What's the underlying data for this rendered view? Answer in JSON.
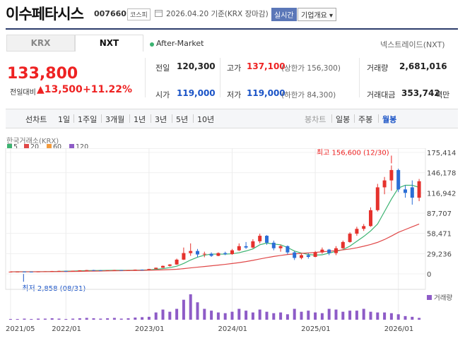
{
  "header": {
    "title": "이수페타시스",
    "code": "007660",
    "market_badge": "코스피",
    "date_text": "2026.04.20  기준(KRX 장마감)",
    "live_badge": "실시간",
    "company_overview": "기업개요 ▾"
  },
  "tabs": {
    "krx": "KRX",
    "nxt": "NXT"
  },
  "after_market": "After-Market",
  "nxt_link": "넥스트레이드(NXT)",
  "quote": {
    "price": "133,800",
    "change_label": "전일대비",
    "change_value": "▲13,500",
    "change_pct": "+11.22%",
    "prev_label": "전일",
    "prev_value": "120,300",
    "high_label": "고가",
    "high_value": "137,100",
    "upper_limit": "(상한가 156,300)",
    "volume_label": "거래량",
    "volume_value": "2,681,016",
    "open_label": "시가",
    "open_value": "119,000",
    "low_label": "저가",
    "low_value": "119,000",
    "lower_limit": "(하한가 84,300)",
    "amount_label": "거래대금",
    "amount_value": "353,742",
    "amount_unit": "백만"
  },
  "period_tabs": [
    "선차트",
    "1일",
    "1주일",
    "3개월",
    "1년",
    "3년",
    "5년",
    "10년"
  ],
  "candle_label": "봉차트",
  "candle_tabs": [
    "일봉",
    "주봉",
    "월봉"
  ],
  "candle_selected": "월봉",
  "chart_data": {
    "type": "candlestick",
    "source_label": "한국거래소(KRX)",
    "ma_legend": [
      {
        "name": "5",
        "color": "#3cb371"
      },
      {
        "name": "20",
        "color": "#e04848"
      },
      {
        "name": "60",
        "color": "#f39a3b"
      },
      {
        "name": "120",
        "color": "#8e5cc7"
      }
    ],
    "y_ticks": [
      "175,414",
      "146,178",
      "116,942",
      "87,707",
      "58,471",
      "29,236",
      "0"
    ],
    "ylim": [
      0,
      175414
    ],
    "x_ticks": [
      "2021/05",
      "2022/01",
      "2023/01",
      "2024/01",
      "2025/01",
      "2026/01"
    ],
    "high_annotation": "최고 156,600 (12/30)",
    "low_annotation": "최저 2,858 (08/31)",
    "volume_label": "거래량",
    "ohlc": [
      {
        "x": "2021-05",
        "o": 3000,
        "h": 3300,
        "l": 2900,
        "c": 3100
      },
      {
        "x": "2021-06",
        "o": 3100,
        "h": 3400,
        "l": 3000,
        "c": 3200
      },
      {
        "x": "2021-07",
        "o": 3200,
        "h": 3500,
        "l": 3000,
        "c": 3100
      },
      {
        "x": "2021-08",
        "o": 3100,
        "h": 3200,
        "l": 2858,
        "c": 3000
      },
      {
        "x": "2021-09",
        "o": 3000,
        "h": 3600,
        "l": 2950,
        "c": 3400
      },
      {
        "x": "2021-10",
        "o": 3400,
        "h": 3800,
        "l": 3300,
        "c": 3600
      },
      {
        "x": "2021-11",
        "o": 3600,
        "h": 4200,
        "l": 3500,
        "c": 4000
      },
      {
        "x": "2021-12",
        "o": 4000,
        "h": 4400,
        "l": 3800,
        "c": 4200
      },
      {
        "x": "2022-01",
        "o": 4200,
        "h": 4500,
        "l": 3900,
        "c": 4100
      },
      {
        "x": "2022-02",
        "o": 4100,
        "h": 4600,
        "l": 4000,
        "c": 4500
      },
      {
        "x": "2022-03",
        "o": 4500,
        "h": 5200,
        "l": 4400,
        "c": 5000
      },
      {
        "x": "2022-04",
        "o": 5000,
        "h": 5600,
        "l": 4800,
        "c": 5400
      },
      {
        "x": "2022-05",
        "o": 5400,
        "h": 5800,
        "l": 5000,
        "c": 5200
      },
      {
        "x": "2022-06",
        "o": 5200,
        "h": 5400,
        "l": 4500,
        "c": 4700
      },
      {
        "x": "2022-07",
        "o": 4700,
        "h": 5300,
        "l": 4600,
        "c": 5100
      },
      {
        "x": "2022-08",
        "o": 5100,
        "h": 5700,
        "l": 5000,
        "c": 5500
      },
      {
        "x": "2022-09",
        "o": 5500,
        "h": 5600,
        "l": 4600,
        "c": 4800
      },
      {
        "x": "2022-10",
        "o": 4800,
        "h": 5500,
        "l": 4700,
        "c": 5300
      },
      {
        "x": "2022-11",
        "o": 5300,
        "h": 6200,
        "l": 5200,
        "c": 6000
      },
      {
        "x": "2022-12",
        "o": 6000,
        "h": 6300,
        "l": 5600,
        "c": 5800
      },
      {
        "x": "2023-01",
        "o": 5800,
        "h": 7200,
        "l": 5700,
        "c": 7000
      },
      {
        "x": "2023-02",
        "o": 7000,
        "h": 9000,
        "l": 6900,
        "c": 8800
      },
      {
        "x": "2023-03",
        "o": 8800,
        "h": 12000,
        "l": 8500,
        "c": 11500
      },
      {
        "x": "2023-04",
        "o": 11500,
        "h": 14000,
        "l": 10500,
        "c": 13500
      },
      {
        "x": "2023-05",
        "o": 13500,
        "h": 22000,
        "l": 13000,
        "c": 20500
      },
      {
        "x": "2023-06",
        "o": 20500,
        "h": 38000,
        "l": 20000,
        "c": 30000
      },
      {
        "x": "2023-07",
        "o": 30000,
        "h": 44000,
        "l": 26000,
        "c": 33000
      },
      {
        "x": "2023-08",
        "o": 33000,
        "h": 36000,
        "l": 24000,
        "c": 28000
      },
      {
        "x": "2023-09",
        "o": 28000,
        "h": 32000,
        "l": 24000,
        "c": 29000
      },
      {
        "x": "2023-10",
        "o": 29000,
        "h": 31000,
        "l": 24500,
        "c": 26000
      },
      {
        "x": "2023-11",
        "o": 26000,
        "h": 31000,
        "l": 25500,
        "c": 30000
      },
      {
        "x": "2023-12",
        "o": 30000,
        "h": 32000,
        "l": 27000,
        "c": 28500
      },
      {
        "x": "2024-01",
        "o": 28500,
        "h": 36000,
        "l": 27500,
        "c": 34000
      },
      {
        "x": "2024-02",
        "o": 34000,
        "h": 44000,
        "l": 33000,
        "c": 40000
      },
      {
        "x": "2024-03",
        "o": 40000,
        "h": 46000,
        "l": 36000,
        "c": 38000
      },
      {
        "x": "2024-04",
        "o": 38000,
        "h": 50000,
        "l": 37000,
        "c": 47000
      },
      {
        "x": "2024-05",
        "o": 47000,
        "h": 58000,
        "l": 44000,
        "c": 55000
      },
      {
        "x": "2024-06",
        "o": 55000,
        "h": 56000,
        "l": 42000,
        "c": 45000
      },
      {
        "x": "2024-07",
        "o": 45000,
        "h": 48000,
        "l": 34000,
        "c": 37000
      },
      {
        "x": "2024-08",
        "o": 37000,
        "h": 42000,
        "l": 32000,
        "c": 40000
      },
      {
        "x": "2024-09",
        "o": 40000,
        "h": 41000,
        "l": 28000,
        "c": 31000
      },
      {
        "x": "2024-10",
        "o": 31000,
        "h": 33000,
        "l": 20000,
        "c": 23000
      },
      {
        "x": "2024-11",
        "o": 23000,
        "h": 29000,
        "l": 21000,
        "c": 27000
      },
      {
        "x": "2024-12",
        "o": 27000,
        "h": 30000,
        "l": 22000,
        "c": 24500
      },
      {
        "x": "2025-01",
        "o": 24500,
        "h": 33000,
        "l": 24000,
        "c": 31000
      },
      {
        "x": "2025-02",
        "o": 31000,
        "h": 38000,
        "l": 29000,
        "c": 35000
      },
      {
        "x": "2025-03",
        "o": 35000,
        "h": 36000,
        "l": 27000,
        "c": 30000
      },
      {
        "x": "2025-04",
        "o": 30000,
        "h": 40000,
        "l": 27000,
        "c": 37000
      },
      {
        "x": "2025-05",
        "o": 37000,
        "h": 48000,
        "l": 36000,
        "c": 46000
      },
      {
        "x": "2025-06",
        "o": 46000,
        "h": 60000,
        "l": 45000,
        "c": 58000
      },
      {
        "x": "2025-07",
        "o": 58000,
        "h": 68000,
        "l": 55000,
        "c": 65000
      },
      {
        "x": "2025-08",
        "o": 65000,
        "h": 72000,
        "l": 62000,
        "c": 69000
      },
      {
        "x": "2025-09",
        "o": 69000,
        "h": 96000,
        "l": 68000,
        "c": 92000
      },
      {
        "x": "2025-10",
        "o": 92000,
        "h": 130000,
        "l": 90000,
        "c": 125000
      },
      {
        "x": "2025-11",
        "o": 125000,
        "h": 140000,
        "l": 115000,
        "c": 135000
      },
      {
        "x": "2025-12",
        "o": 135000,
        "h": 156600,
        "l": 120000,
        "c": 150000
      },
      {
        "x": "2026-01",
        "o": 150000,
        "h": 152000,
        "l": 118000,
        "c": 122000
      },
      {
        "x": "2026-02",
        "o": 122000,
        "h": 128000,
        "l": 110000,
        "c": 117000
      },
      {
        "x": "2026-03",
        "o": 125000,
        "h": 135000,
        "l": 100000,
        "c": 110000
      },
      {
        "x": "2026-04",
        "o": 110000,
        "h": 137100,
        "l": 105000,
        "c": 133800
      }
    ],
    "volume": [
      2,
      2,
      3,
      2,
      3,
      3,
      4,
      3,
      2,
      3,
      4,
      5,
      4,
      3,
      4,
      5,
      3,
      4,
      6,
      7,
      8,
      20,
      28,
      22,
      30,
      55,
      70,
      48,
      30,
      25,
      20,
      18,
      22,
      30,
      25,
      20,
      28,
      22,
      18,
      20,
      15,
      30,
      22,
      25,
      20,
      18,
      30,
      28,
      22,
      25,
      25,
      30,
      22,
      20,
      20,
      18,
      15,
      10,
      8,
      5
    ],
    "ma": {
      "5": [
        3000,
        3050,
        3080,
        3100,
        3120,
        3200,
        3400,
        3600,
        3800,
        4000,
        4300,
        4600,
        4800,
        4900,
        5000,
        5100,
        5100,
        5100,
        5200,
        5400,
        5800,
        6500,
        7600,
        9000,
        11000,
        15000,
        20000,
        24000,
        27000,
        28500,
        28500,
        28500,
        29000,
        30500,
        33000,
        36000,
        42000,
        44500,
        43000,
        42000,
        38000,
        33000,
        30000,
        28000,
        27000,
        27500,
        30000,
        32500,
        35000,
        40000,
        47000,
        54000,
        62000,
        72000,
        90000,
        108000,
        124000,
        128000,
        128000,
        125000
      ],
      "20": [
        3000,
        3000,
        3000,
        3000,
        3050,
        3100,
        3150,
        3250,
        3350,
        3450,
        3600,
        3800,
        3950,
        4100,
        4250,
        4400,
        4550,
        4700,
        4850,
        5000,
        5200,
        5400,
        5700,
        6100,
        6600,
        7500,
        8600,
        9600,
        10600,
        11600,
        12600,
        13700,
        14900,
        16200,
        17700,
        19500,
        21500,
        23400,
        25100,
        26600,
        27900,
        28800,
        29600,
        30300,
        31000,
        31900,
        32700,
        33600,
        34600,
        35900,
        37700,
        39900,
        42400,
        45500,
        49600,
        54600,
        60000,
        64000,
        68000,
        72000
      ]
    }
  }
}
